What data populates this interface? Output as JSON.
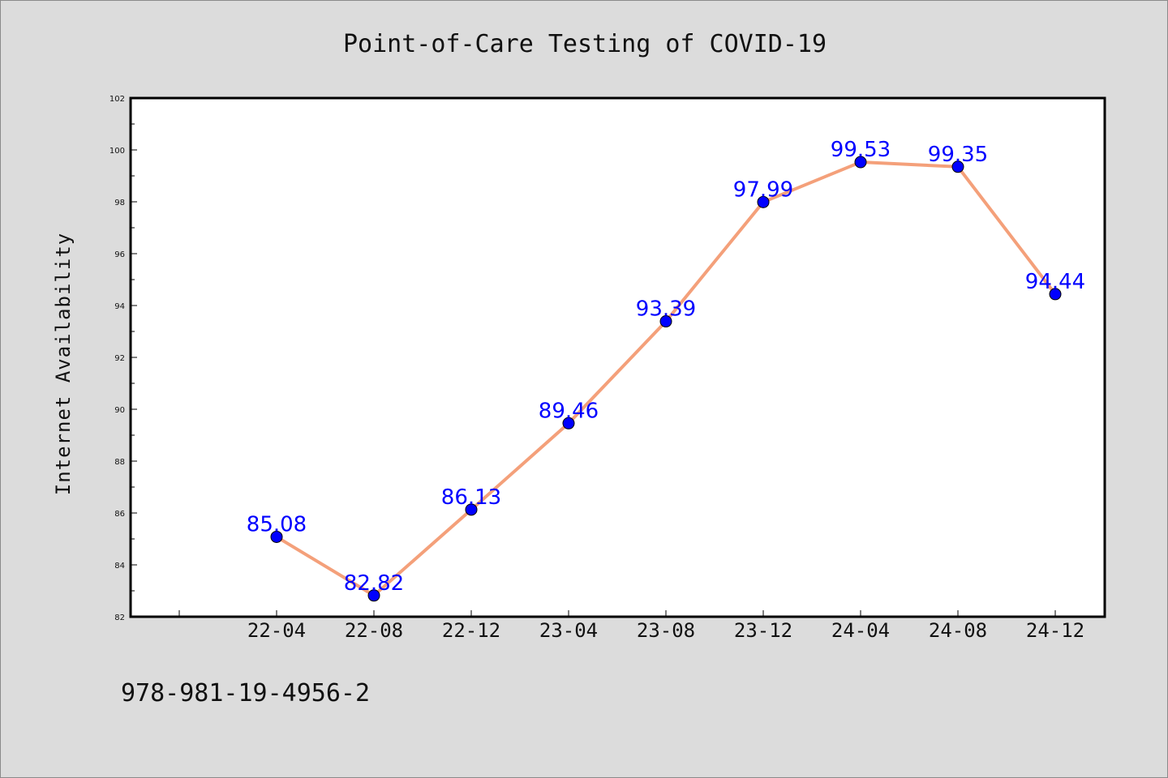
{
  "chart_data": {
    "type": "line",
    "title": "Point-of-Care Testing of COVID-19",
    "xlabel": "",
    "ylabel": "Internet Availability",
    "categories": [
      "22-04",
      "22-08",
      "22-12",
      "23-04",
      "23-08",
      "23-12",
      "24-04",
      "24-08",
      "24-12"
    ],
    "series": [
      {
        "values": [
          85.08,
          82.82,
          86.13,
          89.46,
          93.39,
          97.99,
          99.53,
          99.35,
          94.44
        ],
        "line_color": "#f4a07a",
        "marker_color": "#0000ff"
      }
    ],
    "data_labels": [
      "85.08",
      "82.82",
      "86.13",
      "89.46",
      "93.39",
      "97.99",
      "99.53",
      "99.35",
      "94.44"
    ],
    "yticks": [
      "82",
      "84",
      "86",
      "88",
      "90",
      "92",
      "94",
      "96",
      "98",
      "100",
      "102"
    ],
    "ylim": [
      82,
      102
    ],
    "grid": false,
    "legend": "none",
    "label_color": "#0000ff"
  },
  "footer": {
    "isbn": "978-981-19-4956-2"
  },
  "colors": {
    "background": "#dcdcdc",
    "plot_background": "#ffffff",
    "axis": "#000000"
  }
}
